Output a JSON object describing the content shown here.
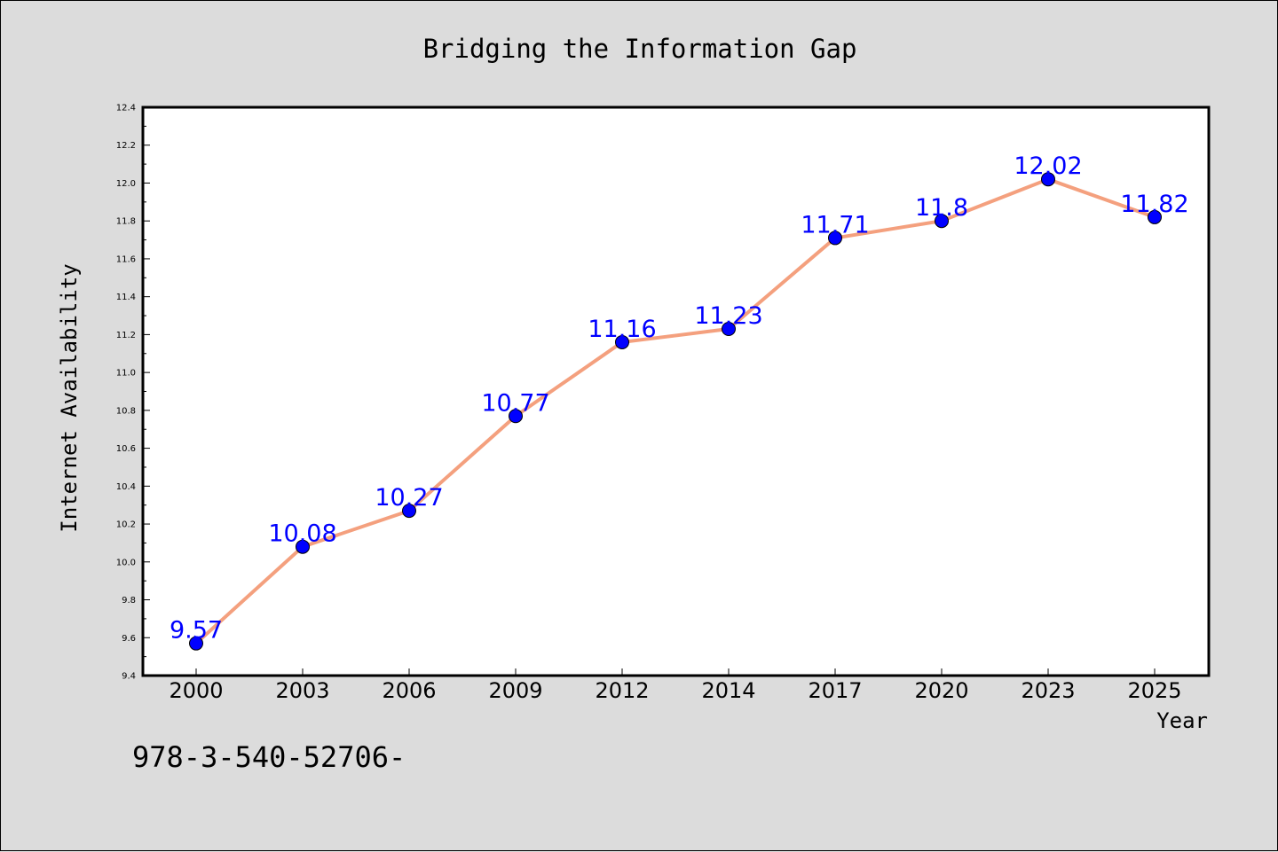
{
  "chart_data": {
    "type": "line",
    "title": "Bridging the Information Gap",
    "xlabel": "Year",
    "ylabel": "Internet Availability",
    "categories": [
      "2000",
      "2003",
      "2006",
      "2009",
      "2012",
      "2014",
      "2017",
      "2020",
      "2023",
      "2025"
    ],
    "values": [
      9.57,
      10.08,
      10.27,
      10.77,
      11.16,
      11.23,
      11.71,
      11.8,
      12.02,
      11.82
    ],
    "data_labels": [
      "9.57",
      "10.08",
      "10.27",
      "10.77",
      "11.16",
      "11.23",
      "11.71",
      "11.8",
      "12.02",
      "11.82"
    ],
    "ylim": [
      9.4,
      12.4
    ],
    "yticks": [
      "9.4",
      "9.6",
      "9.8",
      "10.0",
      "10.2",
      "10.4",
      "10.6",
      "10.8",
      "11.0",
      "11.2",
      "11.4",
      "11.6",
      "11.8",
      "12.0",
      "12.2",
      "12.4"
    ],
    "grid": false,
    "line_color": "#f4a07e",
    "marker_color": "#0000ff",
    "label_color": "#0000ff"
  },
  "footer": {
    "text": "978-3-540-52706-"
  }
}
